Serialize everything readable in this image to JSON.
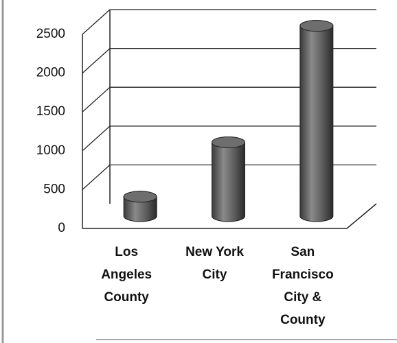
{
  "chart_data": {
    "type": "bar3d",
    "categories": [
      "Los\nAngeles\nCounty",
      "New York\nCity",
      "San\nFrancisco\nCity &\nCounty"
    ],
    "values": [
      250,
      950,
      2450
    ],
    "color": "#6e6e6e",
    "ylim": [
      0,
      2500
    ],
    "yticks": [
      0,
      500,
      1000,
      1500,
      2000,
      2500
    ],
    "grid": true
  }
}
